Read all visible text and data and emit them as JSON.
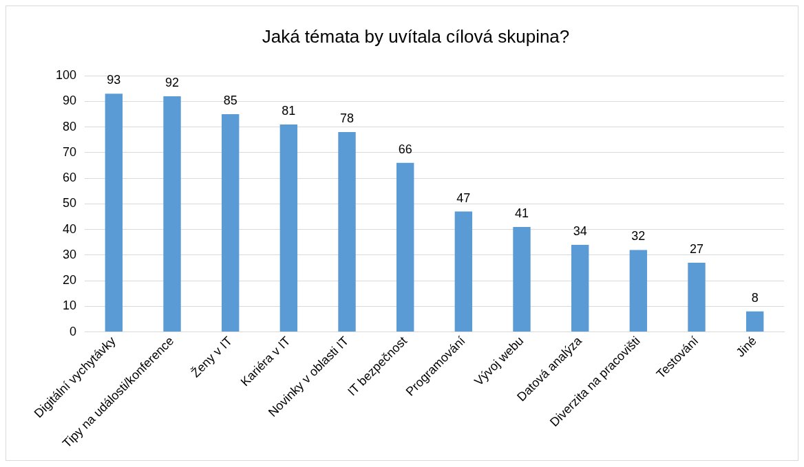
{
  "chart_data": {
    "type": "bar",
    "title": "Jaká témata by uvítala cílová skupina?",
    "categories": [
      "Digitální vychytávky",
      "Tipy na události/konference",
      "Ženy v IT",
      "Kariéra v IT",
      "Novinky v oblasti IT",
      "IT bezpečnost",
      "Programování",
      "Vývoj webu",
      "Datová analýza",
      "Diverzita na pracovišti",
      "Testování",
      "Jiné"
    ],
    "values": [
      93,
      92,
      85,
      81,
      78,
      66,
      47,
      41,
      34,
      32,
      27,
      8
    ],
    "color": "#5b9bd5",
    "ylim": [
      0,
      100
    ],
    "yticks": [
      0,
      10,
      20,
      30,
      40,
      50,
      60,
      70,
      80,
      90,
      100
    ],
    "grid": "y",
    "data_labels": true,
    "legend": false
  }
}
